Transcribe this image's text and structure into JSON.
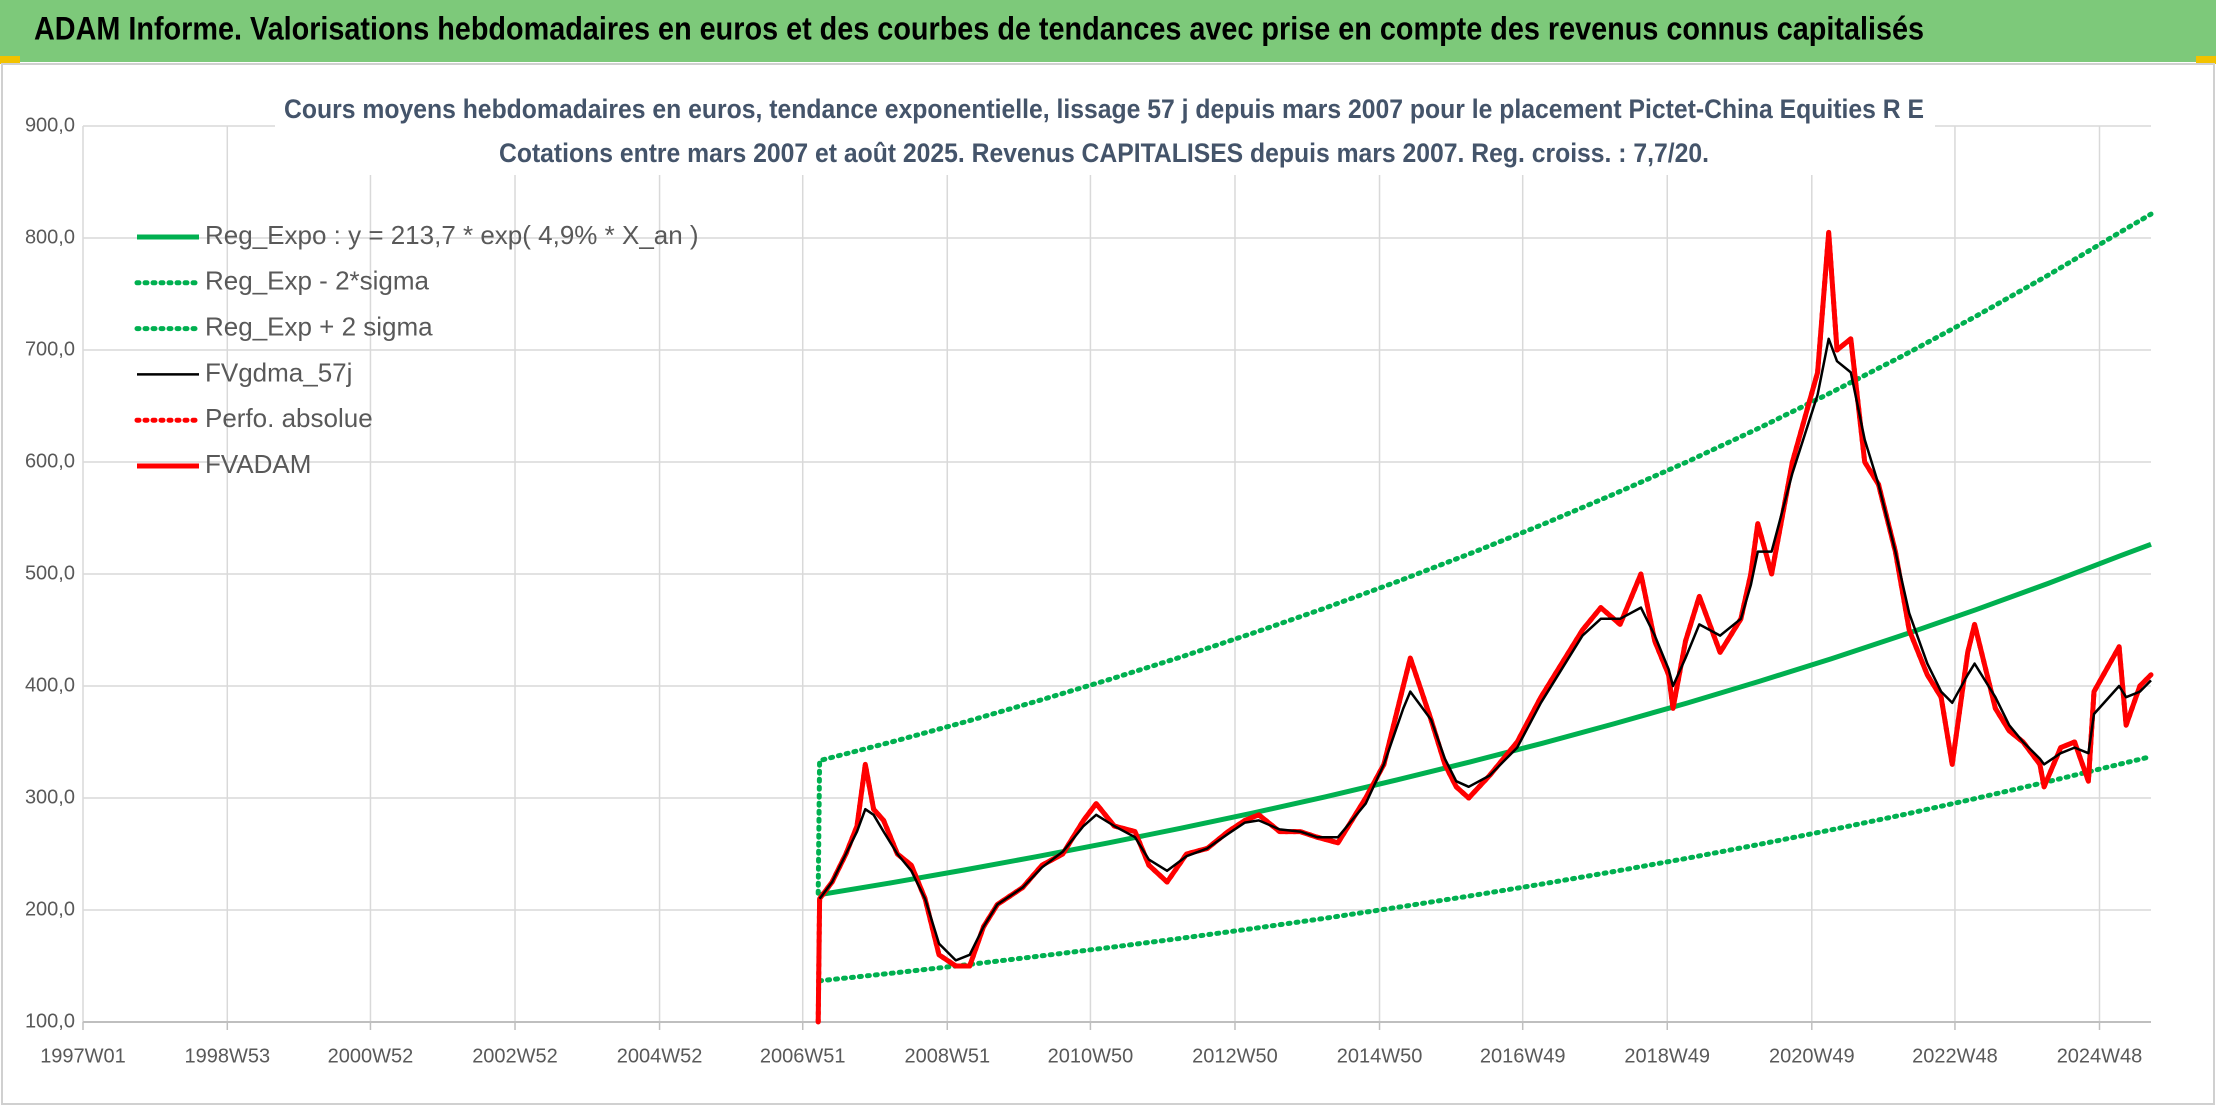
{
  "header": {
    "title": "ADAM Informe. Valorisations hebdomadaires en euros et des courbes de tendances avec prise en compte des revenus connus capitalisés"
  },
  "chart_data": {
    "type": "line",
    "title": "Cours moyens hebdomadaires en euros, tendance exponentielle, lissage 57 j depuis mars 2007 pour le placement Pictet-China Equities R E",
    "subtitle": "Cotations entre mars 2007 et août 2025. Revenus CAPITALISES depuis mars 2007. Reg. croiss. : 7,7/20.",
    "xlim": [
      "1997W01",
      "2025W33"
    ],
    "xticks": [
      "1997W01",
      "1998W53",
      "2000W52",
      "2002W52",
      "2004W52",
      "2006W51",
      "2008W51",
      "2010W50",
      "2012W50",
      "2014W50",
      "2016W49",
      "2018W49",
      "2020W49",
      "2022W48",
      "2024W48"
    ],
    "ylim": [
      100,
      900
    ],
    "yticks": [
      {
        "value": 100,
        "label": "100,0"
      },
      {
        "value": 200,
        "label": "200,0"
      },
      {
        "value": 300,
        "label": "300,0"
      },
      {
        "value": 400,
        "label": "400,0"
      },
      {
        "value": 500,
        "label": "500,0"
      },
      {
        "value": 600,
        "label": "600,0"
      },
      {
        "value": 700,
        "label": "700,0"
      },
      {
        "value": 800,
        "label": "800,0"
      },
      {
        "value": 900,
        "label": "900,0"
      }
    ],
    "grid": true,
    "legend": "top-left",
    "x": [
      "2007W10",
      "2007W11",
      "2007W20",
      "2007W30",
      "2007W38",
      "2007W44",
      "2007W50",
      "2008W05",
      "2008W15",
      "2008W25",
      "2008W35",
      "2008W45",
      "2009W05",
      "2009W15",
      "2009W25",
      "2009W35",
      "2010W01",
      "2010W15",
      "2010W30",
      "2010W45",
      "2011W02",
      "2011W15",
      "2011W30",
      "2011W40",
      "2012W01",
      "2012W15",
      "2012W30",
      "2012W45",
      "2013W05",
      "2013W15",
      "2013W30",
      "2013W45",
      "2014W05",
      "2014W20",
      "2014W40",
      "2015W01",
      "2015W15",
      "2015W20",
      "2015W35",
      "2015W45",
      "2016W01",
      "2016W10",
      "2016W25",
      "2016W45",
      "2017W10",
      "2017W25",
      "2017W40",
      "2018W01",
      "2018W15",
      "2018W30",
      "2018W40",
      "2018W50",
      "2019W01",
      "2019W10",
      "2019W20",
      "2019W35",
      "2019W50",
      "2020W05",
      "2020W10",
      "2020W20",
      "2020W35",
      "2021W01",
      "2021W09",
      "2021W15",
      "2021W25",
      "2021W35",
      "2021W45",
      "2022W05",
      "2022W15",
      "2022W28",
      "2022W38",
      "2022W46",
      "2023W05",
      "2023W10",
      "2023W25",
      "2023W35",
      "2023W45",
      "2024W05",
      "2024W08",
      "2024W20",
      "2024W30",
      "2024W40",
      "2024W44",
      "2025W10",
      "2025W15",
      "2025W25",
      "2025W33"
    ],
    "series": [
      {
        "name": "Reg_Expo : y = 213,7 * exp( 4,9% *  X_an )",
        "color": "#00b050",
        "style": "solid",
        "weight": "thick",
        "x": [
          "2007W11",
          "2008W11",
          "2009W11",
          "2010W11",
          "2011W11",
          "2012W11",
          "2013W11",
          "2014W11",
          "2015W11",
          "2016W11",
          "2017W11",
          "2018W11",
          "2019W11",
          "2020W11",
          "2021W11",
          "2022W11",
          "2023W11",
          "2024W11",
          "2025W11",
          "2025W33"
        ],
        "values": [
          213.7,
          224.4,
          235.7,
          247.6,
          260.0,
          273.0,
          286.7,
          301.1,
          316.3,
          332.2,
          348.8,
          366.4,
          384.7,
          404.1,
          424.4,
          445.7,
          468.1,
          491.6,
          516.3,
          526.5
        ]
      },
      {
        "name": "Reg_Exp - 2*sigma",
        "color": "#00b050",
        "style": "dotted",
        "weight": "thick",
        "x": [
          "2007W11",
          "2008W11",
          "2009W11",
          "2010W11",
          "2011W11",
          "2012W11",
          "2013W11",
          "2014W11",
          "2015W11",
          "2016W11",
          "2017W11",
          "2018W11",
          "2019W11",
          "2020W11",
          "2021W11",
          "2022W11",
          "2023W11",
          "2024W11",
          "2025W11",
          "2025W33"
        ],
        "values": [
          136.8,
          143.6,
          150.8,
          158.5,
          166.4,
          174.7,
          183.5,
          192.7,
          202.4,
          212.6,
          223.2,
          234.5,
          246.2,
          258.6,
          271.6,
          285.2,
          299.6,
          314.6,
          330.4,
          337.0
        ]
      },
      {
        "name": "Reg_Exp + 2 sigma",
        "color": "#00b050",
        "style": "dotted",
        "weight": "thick",
        "x": [
          "2007W10",
          "2007W11",
          "2008W11",
          "2009W11",
          "2010W11",
          "2011W11",
          "2012W11",
          "2013W11",
          "2014W11",
          "2015W11",
          "2016W11",
          "2017W11",
          "2018W11",
          "2019W11",
          "2020W11",
          "2021W11",
          "2022W11",
          "2023W11",
          "2024W11",
          "2025W11",
          "2025W33"
        ],
        "values": [
          215,
          333.4,
          350.1,
          367.7,
          386.3,
          405.6,
          425.9,
          447.3,
          469.7,
          493.4,
          518.2,
          544.1,
          571.6,
          600.1,
          630.4,
          662.1,
          695.3,
          730.2,
          766.9,
          805.4,
          821.3
        ]
      },
      {
        "name": "FVgdma_57j",
        "color": "#000000",
        "style": "solid",
        "weight": "thin",
        "values": [
          null,
          210,
          225,
          250,
          270,
          290,
          285,
          270,
          250,
          235,
          210,
          170,
          155,
          160,
          185,
          205,
          220,
          238,
          252,
          275,
          285,
          275,
          265,
          245,
          235,
          248,
          255,
          268,
          278,
          280,
          272,
          270,
          265,
          265,
          295,
          330,
          380,
          395,
          370,
          335,
          315,
          310,
          320,
          345,
          385,
          415,
          445,
          460,
          460,
          470,
          445,
          415,
          400,
          425,
          455,
          445,
          460,
          490,
          520,
          520,
          590,
          660,
          710,
          690,
          680,
          620,
          580,
          520,
          465,
          420,
          395,
          385,
          410,
          420,
          390,
          365,
          350,
          335,
          330,
          340,
          345,
          340,
          375,
          400,
          390,
          395,
          405
        ]
      },
      {
        "name": "Perfo. absolue",
        "color": "#ff0000",
        "style": "dotted",
        "weight": "thick",
        "values": [
          100,
          210,
          225,
          250,
          275,
          330,
          290,
          280,
          250,
          240,
          210,
          160,
          150,
          150,
          185,
          205,
          220,
          240,
          250,
          280,
          295,
          275,
          270,
          240,
          225,
          250,
          255,
          270,
          280,
          285,
          270,
          270,
          265,
          260,
          300,
          330,
          400,
          425,
          370,
          330,
          310,
          300,
          320,
          350,
          390,
          420,
          450,
          470,
          455,
          500,
          440,
          410,
          380,
          440,
          480,
          430,
          460,
          500,
          545,
          500,
          600,
          680,
          805,
          700,
          710,
          600,
          580,
          520,
          450,
          410,
          390,
          330,
          430,
          455,
          380,
          360,
          350,
          330,
          310,
          345,
          350,
          315,
          395,
          435,
          365,
          400,
          410
        ]
      },
      {
        "name": "FVADAM",
        "color": "#ff0000",
        "style": "solid",
        "weight": "thick",
        "values": [
          100,
          210,
          225,
          250,
          275,
          330,
          290,
          280,
          250,
          240,
          210,
          160,
          150,
          150,
          185,
          205,
          220,
          240,
          250,
          280,
          295,
          275,
          270,
          240,
          225,
          250,
          255,
          270,
          280,
          285,
          270,
          270,
          265,
          260,
          300,
          330,
          400,
          425,
          370,
          330,
          310,
          300,
          320,
          350,
          390,
          420,
          450,
          470,
          455,
          500,
          440,
          410,
          380,
          440,
          480,
          430,
          460,
          500,
          545,
          500,
          600,
          680,
          805,
          700,
          710,
          600,
          580,
          520,
          450,
          410,
          390,
          330,
          430,
          455,
          380,
          360,
          350,
          330,
          310,
          345,
          350,
          315,
          395,
          435,
          365,
          400,
          410
        ]
      }
    ]
  }
}
